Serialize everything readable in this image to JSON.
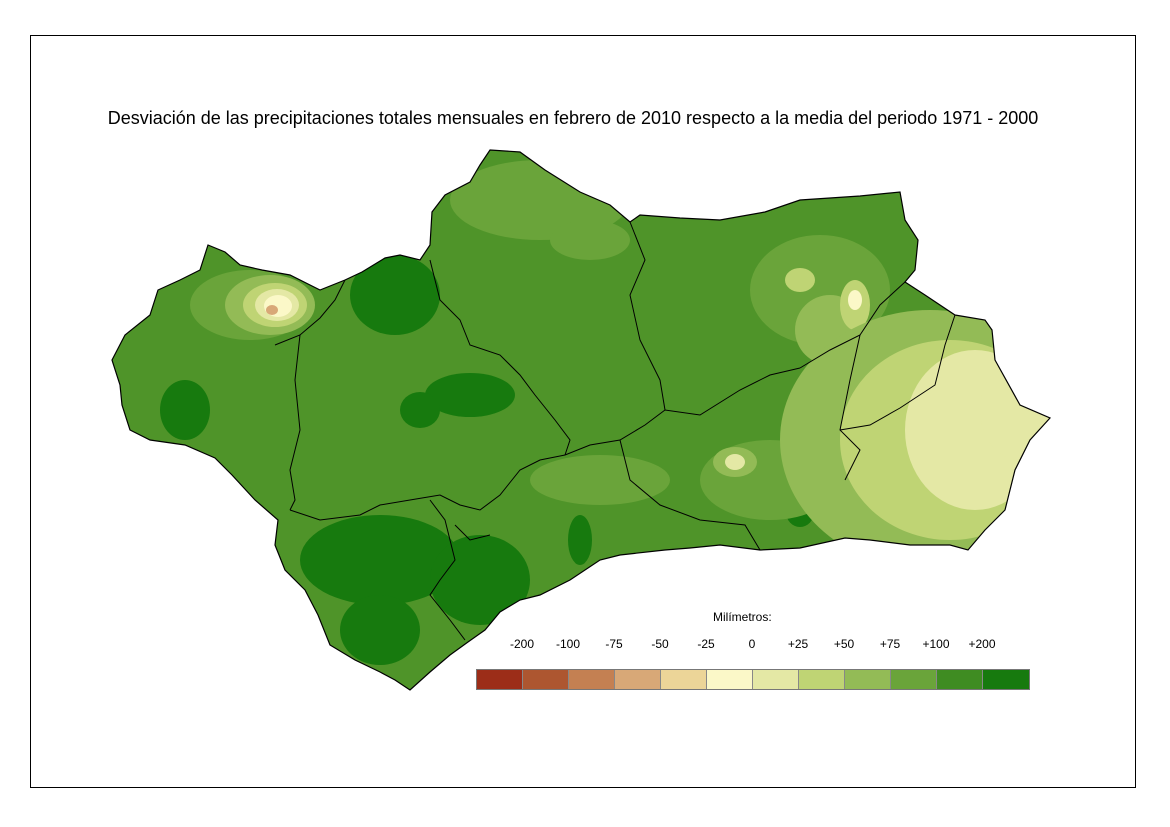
{
  "title": "Desviación de las precipitaciones totales mensuales en febrero de 2010 respecto a la media del periodo 1971 - 2000",
  "legend": {
    "title": "Milímetros:",
    "labels": [
      "-200",
      "-100",
      "-75",
      "-50",
      "-25",
      "0",
      "+25",
      "+50",
      "+75",
      "+100",
      "+200"
    ],
    "colors": [
      "#9c2d18",
      "#ad5630",
      "#c48052",
      "#d8a877",
      "#ecd598",
      "#fbf8c8",
      "#e4e8a5",
      "#bfd474",
      "#93bb56",
      "#6aa43a",
      "#3f8c22",
      "#177a0e"
    ]
  }
}
